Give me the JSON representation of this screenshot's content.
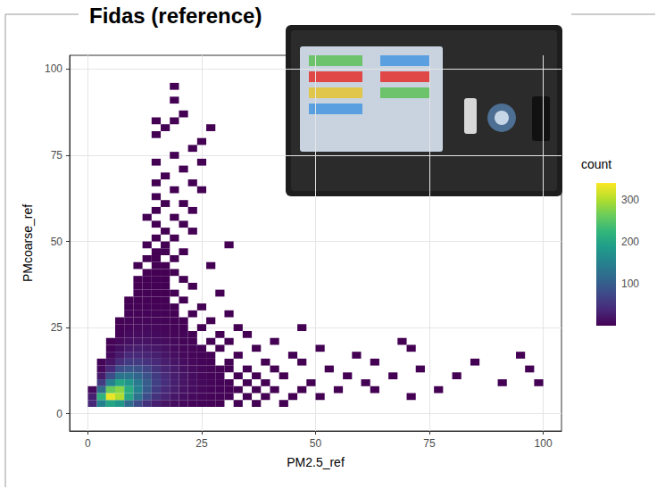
{
  "chart_data": {
    "type": "heatmap",
    "title": "Fidas (reference)",
    "x_label": "PM2.5_ref",
    "y_label": "PMcoarse_ref",
    "xlim": [
      -4,
      104
    ],
    "ylim": [
      -5,
      104
    ],
    "xticks": [
      0,
      25,
      50,
      75,
      100
    ],
    "yticks": [
      0,
      25,
      50,
      75,
      100
    ],
    "grid": true,
    "binwidth": [
      2,
      2
    ],
    "colorbar_title": "count",
    "colorbar_range": [
      1,
      340
    ],
    "colorbar_ticks": [
      100,
      200,
      300
    ],
    "cells": [
      [
        1,
        3,
        40
      ],
      [
        3,
        3,
        150
      ],
      [
        5,
        3,
        200
      ],
      [
        7,
        3,
        180
      ],
      [
        9,
        3,
        120
      ],
      [
        11,
        3,
        80
      ],
      [
        13,
        3,
        50
      ],
      [
        15,
        3,
        30
      ],
      [
        17,
        3,
        20
      ],
      [
        19,
        3,
        12
      ],
      [
        21,
        3,
        8
      ],
      [
        23,
        3,
        5
      ],
      [
        25,
        3,
        4
      ],
      [
        27,
        3,
        3
      ],
      [
        29,
        3,
        2
      ],
      [
        33,
        3,
        2
      ],
      [
        37,
        3,
        1
      ],
      [
        43,
        3,
        1
      ],
      [
        1,
        5,
        30
      ],
      [
        3,
        5,
        220
      ],
      [
        5,
        5,
        330
      ],
      [
        7,
        5,
        300
      ],
      [
        9,
        5,
        200
      ],
      [
        11,
        5,
        130
      ],
      [
        13,
        5,
        80
      ],
      [
        15,
        5,
        50
      ],
      [
        17,
        5,
        35
      ],
      [
        19,
        5,
        22
      ],
      [
        21,
        5,
        15
      ],
      [
        23,
        5,
        10
      ],
      [
        25,
        5,
        7
      ],
      [
        27,
        5,
        5
      ],
      [
        29,
        5,
        4
      ],
      [
        31,
        5,
        3
      ],
      [
        35,
        5,
        2
      ],
      [
        39,
        5,
        1
      ],
      [
        45,
        5,
        1
      ],
      [
        51,
        5,
        1
      ],
      [
        71,
        5,
        1
      ],
      [
        1,
        7,
        10
      ],
      [
        3,
        7,
        120
      ],
      [
        5,
        7,
        260
      ],
      [
        7,
        7,
        280
      ],
      [
        9,
        7,
        210
      ],
      [
        11,
        7,
        150
      ],
      [
        13,
        7,
        95
      ],
      [
        15,
        7,
        60
      ],
      [
        17,
        7,
        40
      ],
      [
        19,
        7,
        28
      ],
      [
        21,
        7,
        18
      ],
      [
        23,
        7,
        12
      ],
      [
        25,
        7,
        8
      ],
      [
        27,
        7,
        6
      ],
      [
        29,
        7,
        4
      ],
      [
        31,
        7,
        3
      ],
      [
        33,
        7,
        2
      ],
      [
        37,
        7,
        2
      ],
      [
        41,
        7,
        1
      ],
      [
        47,
        7,
        1
      ],
      [
        55,
        7,
        1
      ],
      [
        63,
        7,
        1
      ],
      [
        77,
        7,
        1
      ],
      [
        3,
        9,
        60
      ],
      [
        5,
        9,
        150
      ],
      [
        7,
        9,
        200
      ],
      [
        9,
        9,
        180
      ],
      [
        11,
        9,
        140
      ],
      [
        13,
        9,
        100
      ],
      [
        15,
        9,
        65
      ],
      [
        17,
        9,
        45
      ],
      [
        19,
        9,
        30
      ],
      [
        21,
        9,
        20
      ],
      [
        23,
        9,
        14
      ],
      [
        25,
        9,
        9
      ],
      [
        27,
        9,
        6
      ],
      [
        29,
        9,
        4
      ],
      [
        31,
        9,
        3
      ],
      [
        35,
        9,
        2
      ],
      [
        39,
        9,
        1
      ],
      [
        49,
        9,
        1
      ],
      [
        61,
        9,
        1
      ],
      [
        91,
        9,
        1
      ],
      [
        99,
        9,
        1
      ],
      [
        3,
        11,
        25
      ],
      [
        5,
        11,
        80
      ],
      [
        7,
        11,
        130
      ],
      [
        9,
        11,
        130
      ],
      [
        11,
        11,
        110
      ],
      [
        13,
        11,
        85
      ],
      [
        15,
        11,
        60
      ],
      [
        17,
        11,
        42
      ],
      [
        19,
        11,
        28
      ],
      [
        21,
        11,
        20
      ],
      [
        23,
        11,
        12
      ],
      [
        25,
        11,
        8
      ],
      [
        27,
        11,
        5
      ],
      [
        29,
        11,
        4
      ],
      [
        33,
        11,
        2
      ],
      [
        37,
        11,
        1
      ],
      [
        43,
        11,
        1
      ],
      [
        57,
        11,
        1
      ],
      [
        67,
        11,
        1
      ],
      [
        81,
        11,
        1
      ],
      [
        3,
        13,
        10
      ],
      [
        5,
        13,
        40
      ],
      [
        7,
        13,
        80
      ],
      [
        9,
        13,
        90
      ],
      [
        11,
        13,
        85
      ],
      [
        13,
        13,
        70
      ],
      [
        15,
        13,
        50
      ],
      [
        17,
        13,
        35
      ],
      [
        19,
        13,
        25
      ],
      [
        21,
        13,
        16
      ],
      [
        23,
        13,
        10
      ],
      [
        25,
        13,
        7
      ],
      [
        27,
        13,
        4
      ],
      [
        29,
        13,
        3
      ],
      [
        31,
        13,
        2
      ],
      [
        35,
        13,
        1
      ],
      [
        41,
        13,
        1
      ],
      [
        53,
        13,
        1
      ],
      [
        73,
        13,
        1
      ],
      [
        97,
        13,
        1
      ],
      [
        3,
        15,
        4
      ],
      [
        5,
        15,
        20
      ],
      [
        7,
        15,
        45
      ],
      [
        9,
        15,
        60
      ],
      [
        11,
        15,
        60
      ],
      [
        13,
        15,
        50
      ],
      [
        15,
        15,
        40
      ],
      [
        17,
        15,
        28
      ],
      [
        19,
        15,
        20
      ],
      [
        21,
        15,
        12
      ],
      [
        23,
        15,
        8
      ],
      [
        25,
        15,
        5
      ],
      [
        27,
        15,
        3
      ],
      [
        31,
        15,
        2
      ],
      [
        39,
        15,
        1
      ],
      [
        47,
        15,
        1
      ],
      [
        63,
        15,
        1
      ],
      [
        85,
        15,
        1
      ],
      [
        5,
        17,
        10
      ],
      [
        7,
        17,
        25
      ],
      [
        9,
        17,
        40
      ],
      [
        11,
        17,
        40
      ],
      [
        13,
        17,
        35
      ],
      [
        15,
        17,
        30
      ],
      [
        17,
        17,
        20
      ],
      [
        19,
        17,
        14
      ],
      [
        21,
        17,
        9
      ],
      [
        23,
        17,
        6
      ],
      [
        25,
        17,
        4
      ],
      [
        27,
        17,
        3
      ],
      [
        33,
        17,
        1
      ],
      [
        45,
        17,
        1
      ],
      [
        59,
        17,
        1
      ],
      [
        95,
        17,
        1
      ],
      [
        5,
        19,
        5
      ],
      [
        7,
        19,
        15
      ],
      [
        9,
        19,
        25
      ],
      [
        11,
        19,
        28
      ],
      [
        13,
        19,
        25
      ],
      [
        15,
        19,
        22
      ],
      [
        17,
        19,
        16
      ],
      [
        19,
        19,
        10
      ],
      [
        21,
        19,
        7
      ],
      [
        23,
        19,
        4
      ],
      [
        25,
        19,
        3
      ],
      [
        29,
        19,
        2
      ],
      [
        37,
        19,
        1
      ],
      [
        51,
        19,
        1
      ],
      [
        71,
        19,
        1
      ],
      [
        5,
        21,
        3
      ],
      [
        7,
        21,
        8
      ],
      [
        9,
        21,
        15
      ],
      [
        11,
        21,
        18
      ],
      [
        13,
        21,
        17
      ],
      [
        15,
        21,
        15
      ],
      [
        17,
        21,
        12
      ],
      [
        19,
        21,
        8
      ],
      [
        21,
        21,
        5
      ],
      [
        23,
        21,
        3
      ],
      [
        27,
        21,
        2
      ],
      [
        31,
        21,
        1
      ],
      [
        41,
        21,
        1
      ],
      [
        69,
        21,
        1
      ],
      [
        7,
        23,
        5
      ],
      [
        9,
        23,
        10
      ],
      [
        11,
        23,
        12
      ],
      [
        13,
        23,
        12
      ],
      [
        15,
        23,
        10
      ],
      [
        17,
        23,
        8
      ],
      [
        19,
        23,
        6
      ],
      [
        21,
        23,
        4
      ],
      [
        23,
        23,
        2
      ],
      [
        29,
        23,
        1
      ],
      [
        35,
        23,
        1
      ],
      [
        7,
        25,
        3
      ],
      [
        9,
        25,
        6
      ],
      [
        11,
        25,
        8
      ],
      [
        13,
        25,
        9
      ],
      [
        15,
        25,
        8
      ],
      [
        17,
        25,
        6
      ],
      [
        19,
        25,
        4
      ],
      [
        21,
        25,
        3
      ],
      [
        25,
        25,
        2
      ],
      [
        33,
        25,
        1
      ],
      [
        47,
        25,
        1
      ],
      [
        7,
        27,
        2
      ],
      [
        9,
        27,
        4
      ],
      [
        11,
        27,
        6
      ],
      [
        13,
        27,
        6
      ],
      [
        15,
        27,
        6
      ],
      [
        17,
        27,
        4
      ],
      [
        19,
        27,
        3
      ],
      [
        21,
        27,
        2
      ],
      [
        27,
        27,
        1
      ],
      [
        9,
        29,
        3
      ],
      [
        11,
        29,
        4
      ],
      [
        13,
        29,
        5
      ],
      [
        15,
        29,
        4
      ],
      [
        17,
        29,
        3
      ],
      [
        19,
        29,
        2
      ],
      [
        23,
        29,
        1
      ],
      [
        31,
        29,
        1
      ],
      [
        9,
        31,
        2
      ],
      [
        11,
        31,
        3
      ],
      [
        13,
        31,
        3
      ],
      [
        15,
        31,
        3
      ],
      [
        17,
        31,
        2
      ],
      [
        19,
        31,
        2
      ],
      [
        25,
        31,
        1
      ],
      [
        9,
        33,
        1
      ],
      [
        11,
        33,
        2
      ],
      [
        13,
        33,
        3
      ],
      [
        15,
        33,
        2
      ],
      [
        17,
        33,
        2
      ],
      [
        21,
        33,
        1
      ],
      [
        11,
        35,
        2
      ],
      [
        13,
        35,
        2
      ],
      [
        15,
        35,
        2
      ],
      [
        17,
        35,
        1
      ],
      [
        19,
        35,
        1
      ],
      [
        29,
        35,
        1
      ],
      [
        11,
        37,
        1
      ],
      [
        13,
        37,
        2
      ],
      [
        15,
        37,
        2
      ],
      [
        17,
        37,
        1
      ],
      [
        23,
        37,
        1
      ],
      [
        11,
        39,
        1
      ],
      [
        13,
        39,
        1
      ],
      [
        15,
        39,
        2
      ],
      [
        17,
        39,
        1
      ],
      [
        21,
        39,
        1
      ],
      [
        13,
        41,
        1
      ],
      [
        15,
        41,
        1
      ],
      [
        17,
        41,
        1
      ],
      [
        19,
        41,
        1
      ],
      [
        11,
        43,
        1
      ],
      [
        15,
        43,
        1
      ],
      [
        17,
        43,
        1
      ],
      [
        27,
        43,
        1
      ],
      [
        13,
        45,
        1
      ],
      [
        15,
        45,
        1
      ],
      [
        19,
        45,
        1
      ],
      [
        15,
        47,
        1
      ],
      [
        17,
        47,
        1
      ],
      [
        21,
        47,
        1
      ],
      [
        13,
        49,
        1
      ],
      [
        17,
        49,
        1
      ],
      [
        31,
        49,
        1
      ],
      [
        15,
        51,
        1
      ],
      [
        19,
        51,
        1
      ],
      [
        17,
        53,
        1
      ],
      [
        23,
        53,
        1
      ],
      [
        15,
        55,
        1
      ],
      [
        21,
        55,
        1
      ],
      [
        13,
        57,
        1
      ],
      [
        19,
        57,
        1
      ],
      [
        15,
        59,
        1
      ],
      [
        23,
        59,
        1
      ],
      [
        17,
        61,
        1
      ],
      [
        21,
        61,
        1
      ],
      [
        15,
        63,
        1
      ],
      [
        19,
        65,
        1
      ],
      [
        25,
        65,
        1
      ],
      [
        15,
        67,
        1
      ],
      [
        23,
        67,
        1
      ],
      [
        17,
        69,
        1
      ],
      [
        21,
        71,
        1
      ],
      [
        15,
        73,
        1
      ],
      [
        25,
        73,
        1
      ],
      [
        19,
        75,
        1
      ],
      [
        23,
        77,
        1
      ],
      [
        25,
        79,
        1
      ],
      [
        15,
        81,
        1
      ],
      [
        17,
        83,
        1
      ],
      [
        27,
        83,
        1
      ],
      [
        15,
        85,
        1
      ],
      [
        19,
        85,
        1
      ],
      [
        21,
        87,
        1
      ],
      [
        19,
        91,
        1
      ],
      [
        19,
        95,
        1
      ]
    ]
  }
}
